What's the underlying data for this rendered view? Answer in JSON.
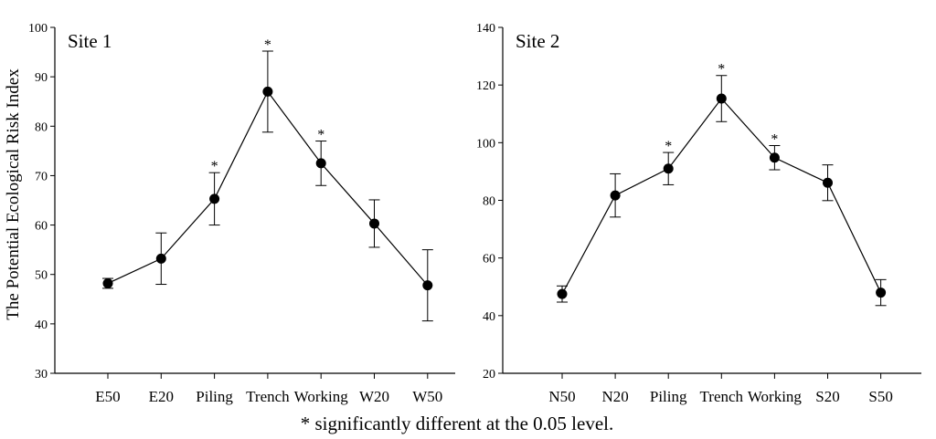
{
  "ylabel": "The Potential Ecological Risk Index",
  "footnote": "* significantly different at the 0.05 level.",
  "chart_data": [
    {
      "type": "line",
      "title": "Site 1",
      "ylabel": "The Potential Ecological Risk Index",
      "categories": [
        "E50",
        "E20",
        "Piling",
        "Trench",
        "Working",
        "W20",
        "W50"
      ],
      "values": [
        48.2,
        53.2,
        65.3,
        87.0,
        72.5,
        60.3,
        47.8
      ],
      "error": [
        1.0,
        5.2,
        5.3,
        8.2,
        4.5,
        4.8,
        7.2
      ],
      "significant": [
        false,
        false,
        true,
        true,
        true,
        false,
        false
      ],
      "ylim": [
        30,
        100
      ],
      "yticks": [
        30,
        40,
        50,
        60,
        70,
        80,
        90,
        100
      ]
    },
    {
      "type": "line",
      "title": "Site 2",
      "categories": [
        "N50",
        "N20",
        "Piling",
        "Trench",
        "Working",
        "S20",
        "S50"
      ],
      "values": [
        47.5,
        81.7,
        91.0,
        115.3,
        94.8,
        86.1,
        48.0
      ],
      "error": [
        2.8,
        7.5,
        5.6,
        8.0,
        4.2,
        6.2,
        4.5
      ],
      "significant": [
        false,
        false,
        true,
        true,
        true,
        false,
        false
      ],
      "ylim": [
        20,
        140
      ],
      "yticks": [
        20,
        40,
        60,
        80,
        100,
        120,
        140
      ]
    }
  ]
}
